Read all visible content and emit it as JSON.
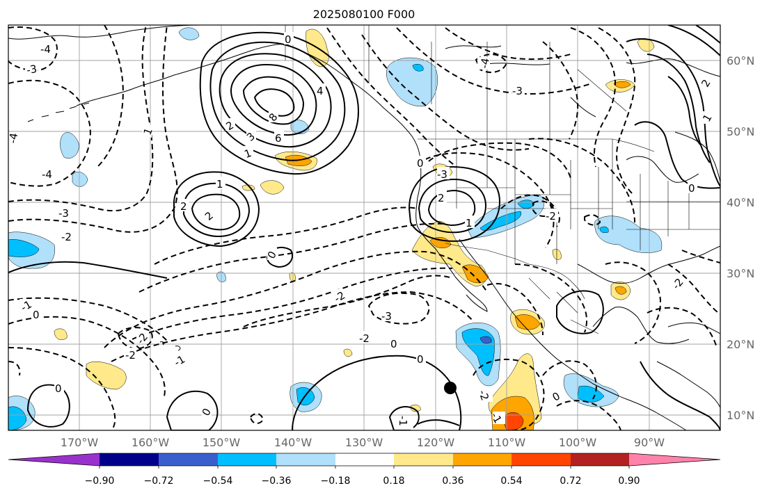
{
  "title": "2025080100 F000",
  "map": {
    "lat_labels": [
      "60°N",
      "50°N",
      "40°N",
      "30°N",
      "20°N",
      "10°N"
    ],
    "lon_labels": [
      "170°W",
      "160°W",
      "150°W",
      "140°W",
      "130°W",
      "120°W",
      "110°W",
      "100°W",
      "90°W"
    ],
    "contour_labels": [
      {
        "text": "-4"
      },
      {
        "text": "-3"
      },
      {
        "text": "-4"
      },
      {
        "text": "-4"
      },
      {
        "text": "-3"
      },
      {
        "text": "-2"
      },
      {
        "text": "-1"
      },
      {
        "text": "0"
      },
      {
        "text": "-2"
      },
      {
        "text": "-1"
      },
      {
        "text": "-2"
      },
      {
        "text": "2"
      },
      {
        "text": "1"
      },
      {
        "text": "2"
      },
      {
        "text": "4"
      },
      {
        "text": "6"
      },
      {
        "text": "8"
      },
      {
        "text": "3"
      },
      {
        "text": "2"
      },
      {
        "text": "1"
      },
      {
        "text": "0"
      },
      {
        "text": "0"
      },
      {
        "text": "1"
      },
      {
        "text": "2"
      },
      {
        "text": "-2"
      },
      {
        "text": "-3"
      },
      {
        "text": "-2"
      },
      {
        "text": "-3"
      },
      {
        "text": "-2"
      },
      {
        "text": "0"
      },
      {
        "text": "0"
      },
      {
        "text": "-1"
      },
      {
        "text": "0"
      },
      {
        "text": "0"
      },
      {
        "text": "0"
      },
      {
        "text": "-1"
      },
      {
        "text": "-2"
      },
      {
        "text": "0"
      },
      {
        "text": "-2"
      },
      {
        "text": "1"
      },
      {
        "text": "2"
      },
      {
        "text": "0"
      },
      {
        "text": "-4"
      },
      {
        "text": "-3"
      },
      {
        "text": "1"
      }
    ]
  },
  "colorbar": {
    "tick_labels": [
      "−0.90",
      "−0.72",
      "−0.54",
      "−0.36",
      "−0.18",
      "0.18",
      "0.36",
      "0.54",
      "0.72",
      "0.90"
    ],
    "colors": {
      "under": "#9932cc",
      "b1": "#00008b",
      "b2": "#3a5fcd",
      "b3": "#00bfff",
      "b4": "#b0e0fa",
      "b5": "#ffffff",
      "b6": "#ffe98a",
      "b7": "#ffa500",
      "b8": "#ff4500",
      "b9": "#b22222",
      "over": "#ff82ab"
    }
  }
}
